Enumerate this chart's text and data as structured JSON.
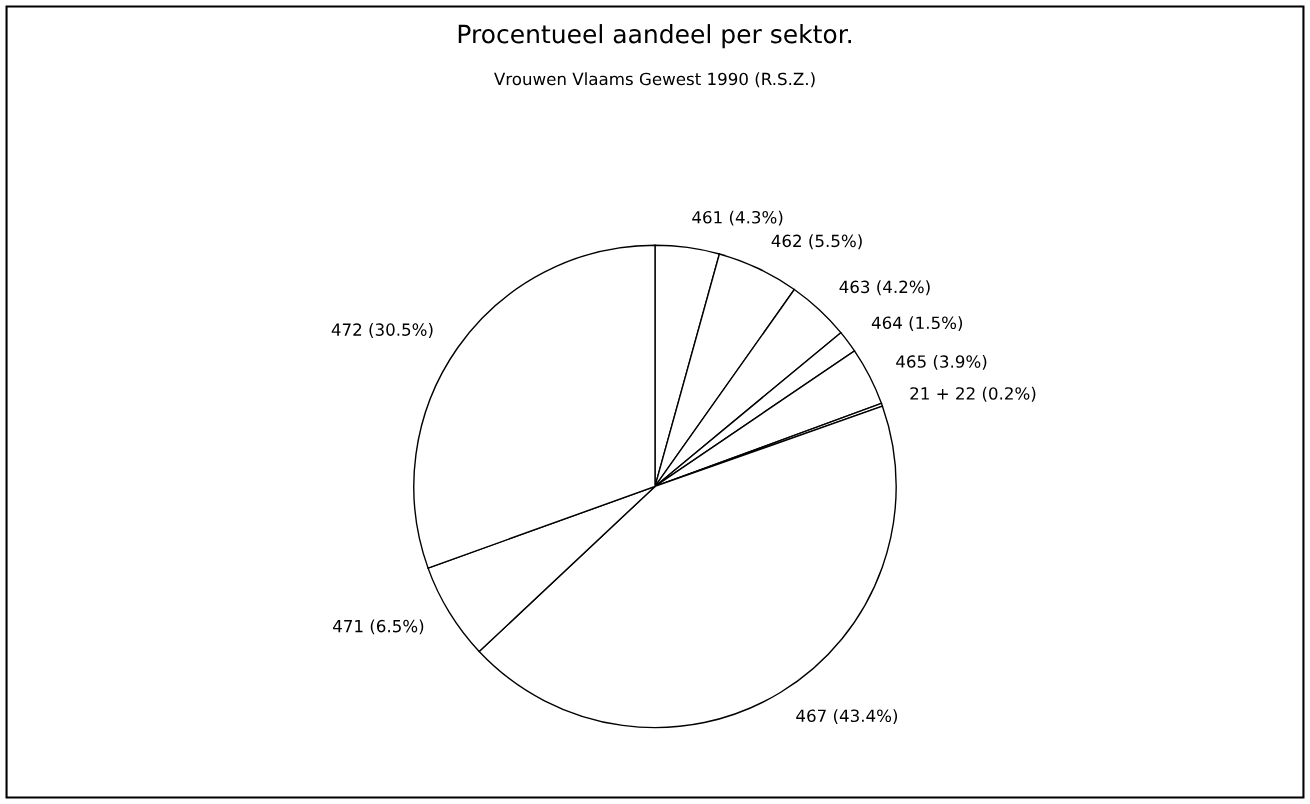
{
  "chart_data": {
    "type": "pie",
    "title": "Procentueel aandeel per sektor.",
    "subtitle": "Vrouwen Vlaams Gewest 1990 (R.S.Z.)",
    "categories": [
      "461 (4.3%)",
      "462 (5.5%)",
      "463 (4.2%)",
      "464 (1.5%)",
      "465 (3.9%)",
      "21 + 22 (0.2%)",
      "467 (43.4%)",
      "471 (6.5%)",
      "472 (30.5%)"
    ],
    "values": [
      4.3,
      5.5,
      4.2,
      1.5,
      3.9,
      0.2,
      43.4,
      6.5,
      30.5
    ],
    "colors": [
      "#ffffff",
      "#ffffff",
      "#ffffff",
      "#ffffff",
      "#ffffff",
      "#ffffff",
      "#ffffff",
      "#ffffff",
      "#ffffff"
    ],
    "legend": false
  }
}
